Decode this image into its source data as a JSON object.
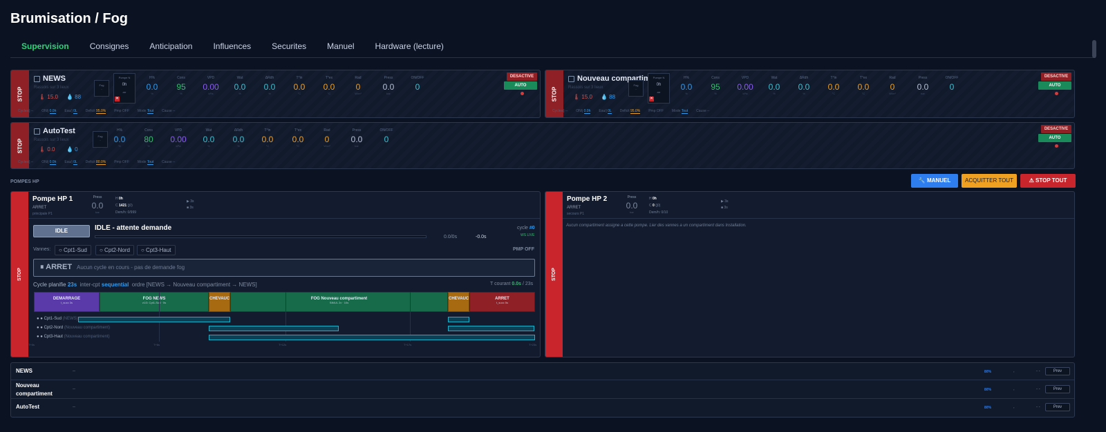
{
  "title": "Brumisation / Fog",
  "tabs": [
    "Supervision",
    "Consignes",
    "Anticipation",
    "Influences",
    "Securites",
    "Manuel",
    "Hardware (lecture)"
  ],
  "compartments": [
    {
      "name": "NEWS",
      "sub": "Rassois sur 3 lieux",
      "stop": "STOP",
      "temp": "🌡 15.0",
      "hum": "💧 88",
      "pompe_box": "Pompe N",
      "pompe_val": "0h",
      "pompe_sub": "arr",
      "fog_box": "Fog",
      "metrics": [
        {
          "l": "H%",
          "v": "0.0",
          "u": "%",
          "c": "c-blue"
        },
        {
          "l": "Cons",
          "v": "95",
          "u": "%",
          "c": "c-green"
        },
        {
          "l": "VPD",
          "v": "0.00",
          "u": "kPa",
          "c": "c-purple"
        },
        {
          "l": "Wat",
          "v": "0.0",
          "u": "%",
          "c": "c-cyan"
        },
        {
          "l": "ΔRdh",
          "v": "0.0",
          "u": "%",
          "c": "c-cyan"
        },
        {
          "l": "T°in",
          "v": "0.0",
          "u": "°C",
          "c": "c-orange"
        },
        {
          "l": "T°ex",
          "v": "0.0",
          "u": "°C",
          "c": "c-orange"
        },
        {
          "l": "Rad",
          "v": "0",
          "u": "W/m²",
          "c": "c-orange"
        },
        {
          "l": "Press",
          "v": "0.0",
          "u": "bar",
          "c": "c-gray"
        },
        {
          "l": "ON/OFF",
          "v": "0",
          "u": "",
          "c": "c-cyan"
        }
      ],
      "footer": {
        "cycles": "Cycles/j --",
        "onj": "ON/j",
        "onj_v": "0.0h",
        "eauj": "Eau/j",
        "eauj_v": "0L",
        "deficit": "Deficit",
        "deficit_v": "95.0%",
        "pmp": "Pmp OFF",
        "mode": "Mode",
        "mode_v": "Tout",
        "cause": "Cause --"
      },
      "desactive": "DESACTIVE",
      "auto": "AUTO"
    },
    {
      "name": "Nouveau compartiment",
      "sub": "Rassois sur 3 lieux",
      "stop": "STOP",
      "temp": "🌡 15.0",
      "hum": "💧 88",
      "pompe_box": "Pompe N",
      "pompe_val": "0h",
      "pompe_sub": "arr",
      "fog_box": "Fog",
      "metrics": [
        {
          "l": "H%",
          "v": "0.0",
          "u": "%",
          "c": "c-blue"
        },
        {
          "l": "Cons",
          "v": "95",
          "u": "%",
          "c": "c-green"
        },
        {
          "l": "VPD",
          "v": "0.00",
          "u": "kPa",
          "c": "c-purple"
        },
        {
          "l": "Wat",
          "v": "0.0",
          "u": "%",
          "c": "c-cyan"
        },
        {
          "l": "ΔRdh",
          "v": "0.0",
          "u": "%",
          "c": "c-cyan"
        },
        {
          "l": "T°in",
          "v": "0.0",
          "u": "°C",
          "c": "c-orange"
        },
        {
          "l": "T°ex",
          "v": "0.0",
          "u": "°C",
          "c": "c-orange"
        },
        {
          "l": "Rad",
          "v": "0",
          "u": "W/m²",
          "c": "c-orange"
        },
        {
          "l": "Press",
          "v": "0.0",
          "u": "bar",
          "c": "c-gray"
        },
        {
          "l": "ON/OFF",
          "v": "0",
          "u": "",
          "c": "c-cyan"
        }
      ],
      "footer": {
        "cycles": "Cycles/j --",
        "onj": "ON/j",
        "onj_v": "0.0h",
        "eauj": "Eau/j",
        "eauj_v": "0L",
        "deficit": "Deficit",
        "deficit_v": "95.0%",
        "pmp": "Pmp OFF",
        "mode": "Mode",
        "mode_v": "Tout",
        "cause": "Cause --"
      },
      "desactive": "DESACTIVE",
      "auto": "AUTO"
    },
    {
      "name": "AutoTest",
      "sub": "Rassois sur 3 lieux",
      "stop": "STOP",
      "temp": "🌡 0.0",
      "hum": "💧 0",
      "fog_box": "Fog",
      "metrics": [
        {
          "l": "H%",
          "v": "0.0",
          "u": "%",
          "c": "c-blue"
        },
        {
          "l": "Cons",
          "v": "80",
          "u": "%",
          "c": "c-green"
        },
        {
          "l": "VPD",
          "v": "0.00",
          "u": "kPa",
          "c": "c-purple"
        },
        {
          "l": "Wat",
          "v": "0.0",
          "u": "%",
          "c": "c-cyan"
        },
        {
          "l": "ΔRdh",
          "v": "0.0",
          "u": "%",
          "c": "c-cyan"
        },
        {
          "l": "T°in",
          "v": "0.0",
          "u": "°C",
          "c": "c-orange"
        },
        {
          "l": "T°ex",
          "v": "0.0",
          "u": "°C",
          "c": "c-orange"
        },
        {
          "l": "Rad",
          "v": "0",
          "u": "W/m²",
          "c": "c-orange"
        },
        {
          "l": "Press",
          "v": "0.0",
          "u": "bar",
          "c": "c-gray"
        },
        {
          "l": "ON/OFF",
          "v": "0",
          "u": "",
          "c": "c-cyan"
        }
      ],
      "footer": {
        "cycles": "Cycles/j --",
        "onj": "ON/j",
        "onj_v": "0.0h",
        "eauj": "Eau/j",
        "eauj_v": "0L",
        "deficit": "Deficit",
        "deficit_v": "80.0%",
        "pmp": "Pmp OFF",
        "mode": "Mode",
        "mode_v": "Tout",
        "cause": "Cause --"
      },
      "desactive": "DESACTIVE",
      "auto": "AUTO"
    }
  ],
  "pompes_label": "POMPES HP",
  "toolbar": {
    "manuel": "🔧 MANUEL",
    "acquitter": "ACQUITTER TOUT",
    "stop_tout": "⚠ STOP TOUT"
  },
  "pump1": {
    "stop": "STOP",
    "name": "Pompe HP 1",
    "status": "ARRET",
    "role": "principale P1",
    "press_l": "Press",
    "press_v": "0.0",
    "press_u": "bar",
    "h_l": "H",
    "h_v": "0h",
    "c_l": "C",
    "c_v": "1421",
    "c_s": "(j0)",
    "dem": "Dem/h: 0/999",
    "t1": "▶ 3s",
    "t2": "■ 3s",
    "idle": "IDLE",
    "idle_txt": "IDLE - attente demande",
    "prog1": "0.0/0s",
    "prog2": "-0.0s",
    "cycle_l": "cycle",
    "cycle_v": "#0",
    "ws": "WS LIVE",
    "vannes_l": "Vannes:",
    "vannes": [
      "○ Cpt1-Sud",
      "○ Cpt2-Nord",
      "○ Cpt3-Haut"
    ],
    "pmp_off": "PMP OFF",
    "arret_title": "⏸ ARRET",
    "arret_sub": "Aucun cycle en cours - pas de demande fog",
    "plan_l": "Cycle planifie",
    "plan_v": "23s",
    "intercpt_l": "inter-cpt",
    "intercpt_v": "sequential",
    "ordre": "ordre [NEWS → Nouveau compartiment → NEWS]",
    "tcour_l": "T courant",
    "tcour_v": "0.0s",
    "tcour_tot": "/ 23s",
    "segments": [
      {
        "a": "DEMARRAGE",
        "b": "t_succ 3s",
        "color": "#5a3aa8"
      },
      {
        "a": "FOG NEWS",
        "b": "v1/3: Cpt1-Sud · 5s",
        "color": "#176a4a"
      },
      {
        "a": "CHEVAUCH",
        "b": "",
        "color": "#a86a10"
      },
      {
        "a": "FOG Nouveau compartiment",
        "b": "SIMUL 2x · 10s",
        "color": "#176a4a"
      },
      {
        "a": "CHEVAUCH",
        "b": "",
        "color": "#a86a10"
      },
      {
        "a": "ARRET",
        "b": "t_succ 5s",
        "color": "#8f2126"
      }
    ],
    "tracks": [
      {
        "n": "● ● Cpt1-Sud",
        "s": "(NEWS)"
      },
      {
        "n": "● ● Cpt2-Nord",
        "s": "(Nouveau compartiment)"
      },
      {
        "n": "● ● Cpt3-Haut",
        "s": "(Nouveau compartiment)"
      }
    ],
    "axis": [
      "T+0s",
      "T+6s",
      "T+12s",
      "T+17s",
      "T+23s"
    ]
  },
  "pump2": {
    "stop": "STOP",
    "name": "Pompe HP 2",
    "status": "ARRET",
    "role": "secours P1",
    "press_l": "Press",
    "press_v": "0.0",
    "press_u": "bar",
    "h_l": "H",
    "h_v": "0h",
    "c_l": "C",
    "c_v": "0",
    "c_s": "(j0)",
    "dem": "Dem/h: 0/10",
    "t1": "▶ 3s",
    "t2": "■ 3s",
    "msg": "Aucun compartiment assigne a cette pompe. Lier des vannes a un compartiment dans Installation."
  },
  "rows": [
    {
      "n": "NEWS",
      "d": "--",
      "pct": "80%",
      "cm": ",",
      "dd": "- -",
      "prev": "Prev"
    },
    {
      "n": "Nouveau compartiment",
      "d": "--",
      "pct": "80%",
      "cm": ",",
      "dd": "- -",
      "prev": "Prev"
    },
    {
      "n": "AutoTest",
      "d": "--",
      "pct": "80%",
      "cm": ",",
      "dd": "- -",
      "prev": "Prev"
    }
  ],
  "colors": {
    "accent": "#2fd37a",
    "stop": "#c8262c",
    "bg": "#0b1222"
  }
}
